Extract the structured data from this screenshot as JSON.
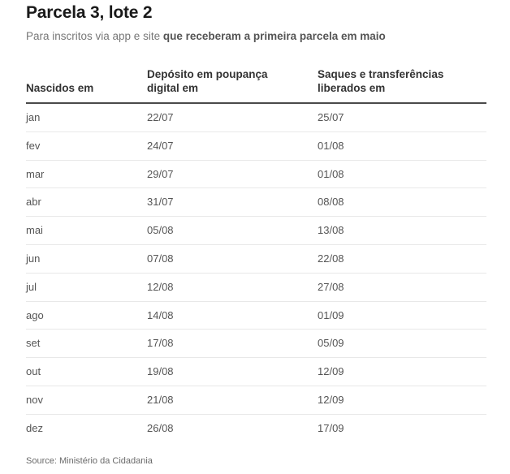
{
  "title": "Parcela 3, lote 2",
  "subtitle": {
    "normal": "Para inscritos via app e site ",
    "bold": "que receberam a primeira parcela em maio"
  },
  "table": {
    "headers": {
      "col1": "Nascidos em",
      "col2_line1": "Depósito em poupança",
      "col2_line2": "digital em",
      "col3_line1": "Saques e transferências",
      "col3_line2": "liberados em"
    },
    "rows": [
      {
        "month": "jan",
        "deposit": "22/07",
        "withdraw": "25/07"
      },
      {
        "month": "fev",
        "deposit": "24/07",
        "withdraw": "01/08"
      },
      {
        "month": "mar",
        "deposit": "29/07",
        "withdraw": "01/08"
      },
      {
        "month": "abr",
        "deposit": "31/07",
        "withdraw": "08/08"
      },
      {
        "month": "mai",
        "deposit": "05/08",
        "withdraw": "13/08"
      },
      {
        "month": "jun",
        "deposit": "07/08",
        "withdraw": "22/08"
      },
      {
        "month": "jul",
        "deposit": "12/08",
        "withdraw": "27/08"
      },
      {
        "month": "ago",
        "deposit": "14/08",
        "withdraw": "01/09"
      },
      {
        "month": "set",
        "deposit": "17/08",
        "withdraw": "05/09"
      },
      {
        "month": "out",
        "deposit": "19/08",
        "withdraw": "12/09"
      },
      {
        "month": "nov",
        "deposit": "21/08",
        "withdraw": "12/09"
      },
      {
        "month": "dez",
        "deposit": "26/08",
        "withdraw": "17/09"
      }
    ]
  },
  "source": "Source: Ministério da Cidadania",
  "colors": {
    "title": "#1a1a1a",
    "text": "#555555",
    "header_rule": "#4a4a4a",
    "row_divider": "#e8e8e8"
  }
}
